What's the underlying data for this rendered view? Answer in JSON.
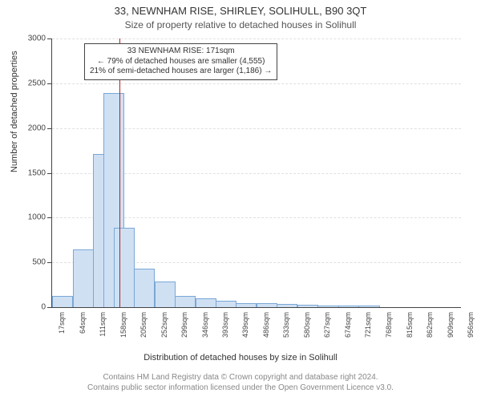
{
  "title": "33, NEWNHAM RISE, SHIRLEY, SOLIHULL, B90 3QT",
  "subtitle": "Size of property relative to detached houses in Solihull",
  "y_axis_label": "Number of detached properties",
  "x_axis_label": "Distribution of detached houses by size in Solihull",
  "footer_line1": "Contains HM Land Registry data © Crown copyright and database right 2024.",
  "footer_line2": "Contains public sector information licensed under the Open Government Licence v3.0.",
  "chart": {
    "type": "histogram",
    "y_max": 3000,
    "y_tick_step": 500,
    "y_tick_labels": [
      "0",
      "500",
      "1000",
      "1500",
      "2000",
      "2500",
      "3000"
    ],
    "bar_color": "#cfe0f3",
    "bar_border": "#7aa7d6",
    "marker_color": "#b22222",
    "marker_value_x": 171,
    "x_ticks": [
      17,
      64,
      111,
      158,
      205,
      252,
      299,
      346,
      393,
      439,
      486,
      533,
      580,
      627,
      674,
      721,
      768,
      815,
      862,
      909,
      956
    ],
    "x_tick_suffix": "sqm",
    "bins": [
      {
        "x": 17,
        "count": 120
      },
      {
        "x": 64,
        "count": 640
      },
      {
        "x": 111,
        "count": 1700
      },
      {
        "x": 135,
        "count": 2380
      },
      {
        "x": 158,
        "count": 880
      },
      {
        "x": 205,
        "count": 420
      },
      {
        "x": 252,
        "count": 280
      },
      {
        "x": 299,
        "count": 120
      },
      {
        "x": 346,
        "count": 90
      },
      {
        "x": 393,
        "count": 60
      },
      {
        "x": 439,
        "count": 40
      },
      {
        "x": 486,
        "count": 40
      },
      {
        "x": 533,
        "count": 30
      },
      {
        "x": 580,
        "count": 20
      },
      {
        "x": 627,
        "count": 10
      },
      {
        "x": 674,
        "count": 10
      },
      {
        "x": 721,
        "count": 5
      }
    ]
  },
  "annotation": {
    "line1": "33 NEWNHAM RISE: 171sqm",
    "line2": "← 79% of detached houses are smaller (4,555)",
    "line3": "21% of semi-detached houses are larger (1,186) →"
  }
}
